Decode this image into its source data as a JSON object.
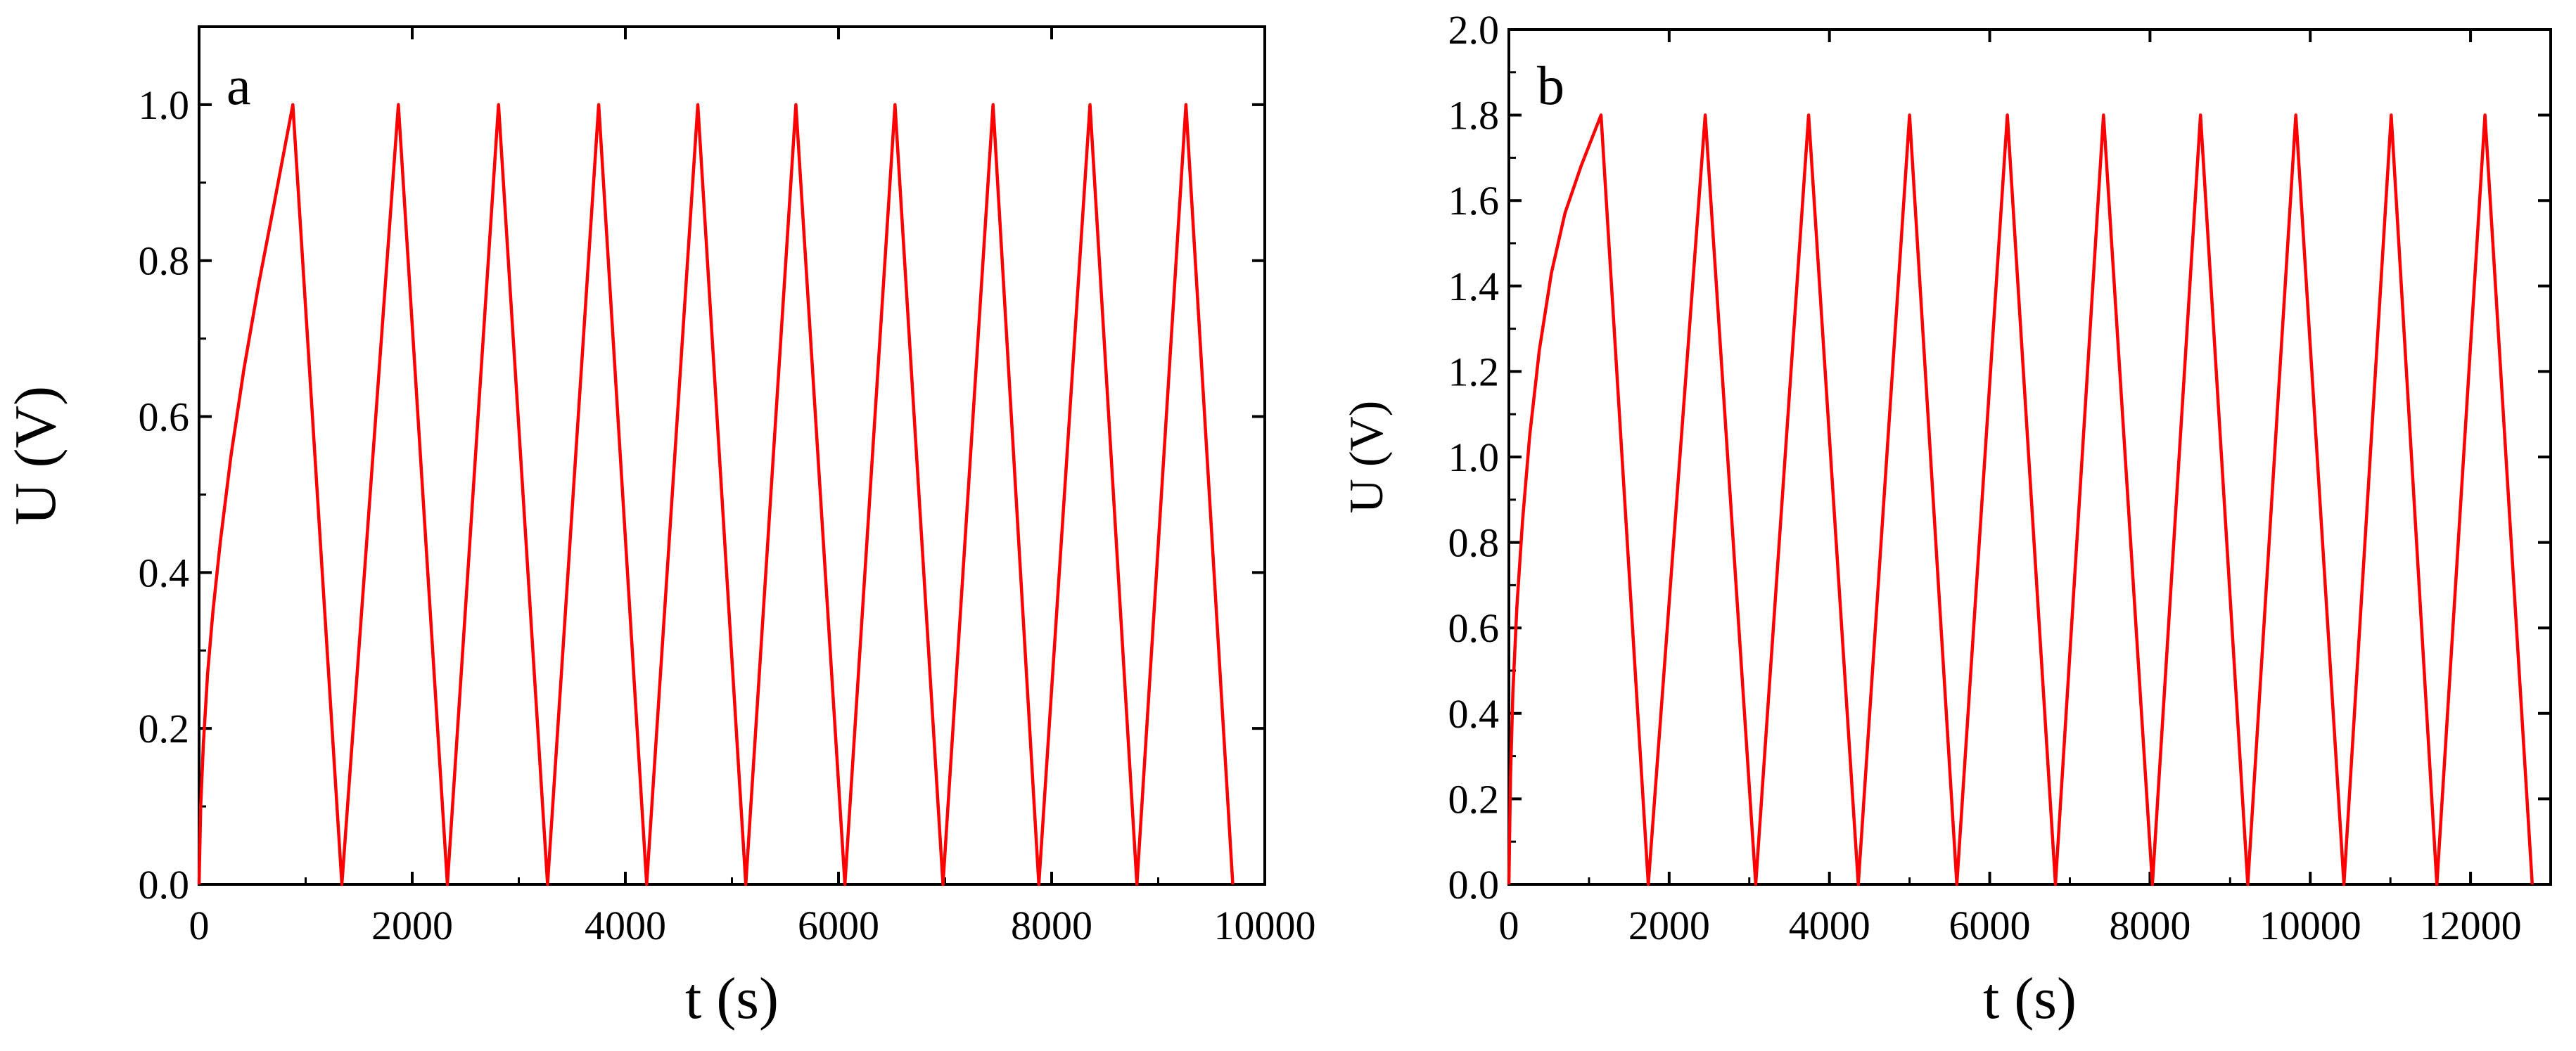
{
  "chart_data": [
    {
      "type": "line",
      "panel_label": "a",
      "xlabel": "t (s)",
      "ylabel": "U (V)",
      "xlim": [
        0,
        10000
      ],
      "ylim": [
        0,
        1.1
      ],
      "xticks": [
        0,
        2000,
        4000,
        6000,
        8000,
        10000
      ],
      "xtick_labels": [
        "0",
        "2000",
        "4000",
        "6000",
        "8000",
        "10000"
      ],
      "yticks": [
        0.0,
        0.2,
        0.4,
        0.6,
        0.8,
        1.0
      ],
      "ytick_labels": [
        "0.0",
        "0.2",
        "0.4",
        "0.6",
        "0.8",
        "1.0"
      ],
      "grid": false,
      "color": "#ff0000",
      "series": [
        {
          "x": [
            0,
            15,
            40,
            80,
            130,
            200,
            300,
            420,
            560,
            700,
            880,
            1340,
            1870,
            2330,
            2810,
            3270,
            3750,
            4200,
            4680,
            5130,
            5600,
            6060,
            6530,
            6980,
            7450,
            7880,
            8360,
            8800,
            9260,
            9700
          ],
          "y": [
            0.0,
            0.1,
            0.18,
            0.27,
            0.35,
            0.44,
            0.55,
            0.66,
            0.77,
            0.87,
            1.0,
            0.0,
            1.0,
            0.0,
            1.0,
            0.0,
            1.0,
            0.0,
            1.0,
            0.0,
            1.0,
            0.0,
            1.0,
            0.0,
            1.0,
            0.0,
            1.0,
            0.0,
            1.0,
            0.0
          ]
        }
      ]
    },
    {
      "type": "line",
      "panel_label": "b",
      "xlabel": "t (s)",
      "ylabel": "U (V)",
      "xlim": [
        0,
        13000
      ],
      "ylim": [
        0,
        2.0
      ],
      "xticks": [
        0,
        2000,
        4000,
        6000,
        8000,
        10000,
        12000
      ],
      "xtick_labels": [
        "0",
        "2000",
        "4000",
        "6000",
        "8000",
        "10000",
        "12000"
      ],
      "yticks": [
        0.0,
        0.2,
        0.4,
        0.6,
        0.8,
        1.0,
        1.2,
        1.4,
        1.6,
        1.8,
        2.0
      ],
      "ytick_labels": [
        "0.0",
        "0.2",
        "0.4",
        "0.6",
        "0.8",
        "1.0",
        "1.2",
        "1.4",
        "1.6",
        "1.8",
        "2.0"
      ],
      "grid": false,
      "color": "#ff0000",
      "series": [
        {
          "x": [
            0,
            20,
            50,
            100,
            170,
            260,
            380,
            530,
            700,
            900,
            1150,
            1740,
            2450,
            3080,
            3740,
            4360,
            5000,
            5590,
            6220,
            6820,
            7420,
            8030,
            8630,
            9220,
            9820,
            10420,
            11010,
            11580,
            12180,
            12770
          ],
          "y": [
            0.0,
            0.25,
            0.45,
            0.65,
            0.85,
            1.05,
            1.25,
            1.43,
            1.57,
            1.68,
            1.8,
            0.0,
            1.8,
            0.0,
            1.8,
            0.0,
            1.8,
            0.0,
            1.8,
            0.0,
            1.8,
            0.0,
            1.8,
            0.0,
            1.8,
            0.0,
            1.8,
            0.0,
            1.8,
            0.0
          ]
        }
      ]
    }
  ]
}
